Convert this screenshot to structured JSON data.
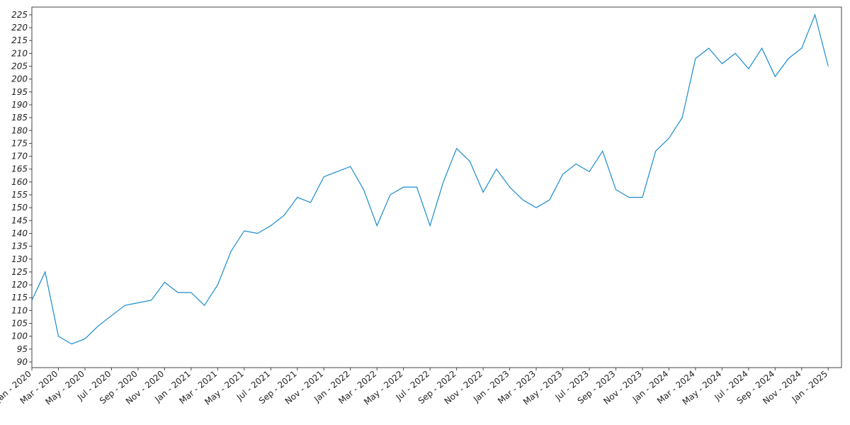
{
  "chart_data": {
    "type": "line",
    "x": [
      "2020-01",
      "2020-02",
      "2020-03",
      "2020-04",
      "2020-05",
      "2020-06",
      "2020-07",
      "2020-08",
      "2020-09",
      "2020-10",
      "2020-11",
      "2020-12",
      "2021-01",
      "2021-02",
      "2021-03",
      "2021-04",
      "2021-05",
      "2021-06",
      "2021-07",
      "2021-08",
      "2021-09",
      "2021-10",
      "2021-11",
      "2021-12",
      "2022-01",
      "2022-02",
      "2022-03",
      "2022-04",
      "2022-05",
      "2022-06",
      "2022-07",
      "2022-08",
      "2022-09",
      "2022-10",
      "2022-11",
      "2022-12",
      "2023-01",
      "2023-02",
      "2023-03",
      "2023-04",
      "2023-05",
      "2023-06",
      "2023-07",
      "2023-08",
      "2023-09",
      "2023-10",
      "2023-11",
      "2023-12",
      "2024-01",
      "2024-02",
      "2024-03",
      "2024-04",
      "2024-05",
      "2024-06",
      "2024-07",
      "2024-08",
      "2024-09",
      "2024-10",
      "2024-11",
      "2024-12",
      "2025-01"
    ],
    "series": [
      {
        "color": "#1a8ccc",
        "values": [
          114,
          125,
          100,
          97,
          99,
          104,
          108,
          112,
          113,
          114,
          121,
          117,
          117,
          112,
          120,
          133,
          141,
          140,
          143,
          147,
          154,
          152,
          162,
          164,
          166,
          157,
          143,
          155,
          158,
          158,
          143,
          160,
          173,
          168,
          156,
          165,
          158,
          153,
          150,
          153,
          163,
          167,
          164,
          172,
          157,
          154,
          154,
          172,
          177,
          185,
          208,
          212,
          206,
          210,
          204,
          212,
          201,
          208,
          212,
          225,
          205
        ]
      }
    ],
    "xlim": [
      "2020-01",
      "2025-02"
    ],
    "xticks": [
      {
        "value": "2020-01",
        "label": "Jan - 2020"
      },
      {
        "value": "2020-03",
        "label": "Mar - 2020"
      },
      {
        "value": "2020-05",
        "label": "May - 2020"
      },
      {
        "value": "2020-07",
        "label": "Jul - 2020"
      },
      {
        "value": "2020-09",
        "label": "Sep - 2020"
      },
      {
        "value": "2020-11",
        "label": "Nov - 2020"
      },
      {
        "value": "2021-01",
        "label": "Jan - 2021"
      },
      {
        "value": "2021-03",
        "label": "Mar - 2021"
      },
      {
        "value": "2021-05",
        "label": "May - 2021"
      },
      {
        "value": "2021-07",
        "label": "Jul - 2021"
      },
      {
        "value": "2021-09",
        "label": "Sep - 2021"
      },
      {
        "value": "2021-11",
        "label": "Nov - 2021"
      },
      {
        "value": "2022-01",
        "label": "Jan - 2022"
      },
      {
        "value": "2022-03",
        "label": "Mar - 2022"
      },
      {
        "value": "2022-05",
        "label": "May - 2022"
      },
      {
        "value": "2022-07",
        "label": "Jul - 2022"
      },
      {
        "value": "2022-09",
        "label": "Sep - 2022"
      },
      {
        "value": "2022-11",
        "label": "Nov - 2022"
      },
      {
        "value": "2023-01",
        "label": "Jan - 2023"
      },
      {
        "value": "2023-03",
        "label": "Mar - 2023"
      },
      {
        "value": "2023-05",
        "label": "May - 2023"
      },
      {
        "value": "2023-07",
        "label": "Jul - 2023"
      },
      {
        "value": "2023-09",
        "label": "Sep - 2023"
      },
      {
        "value": "2023-11",
        "label": "Nov - 2023"
      },
      {
        "value": "2024-01",
        "label": "Jan - 2024"
      },
      {
        "value": "2024-03",
        "label": "Mar - 2024"
      },
      {
        "value": "2024-05",
        "label": "May - 2024"
      },
      {
        "value": "2024-07",
        "label": "Jul - 2024"
      },
      {
        "value": "2024-09",
        "label": "Sep - 2024"
      },
      {
        "value": "2024-11",
        "label": "Nov - 2024"
      },
      {
        "value": "2025-01",
        "label": "Jan - 2025"
      }
    ],
    "ylim": [
      87.8,
      228
    ],
    "yticks": [
      90,
      95,
      100,
      105,
      110,
      115,
      120,
      125,
      130,
      135,
      140,
      145,
      150,
      155,
      160,
      165,
      170,
      175,
      180,
      185,
      190,
      195,
      200,
      205,
      210,
      215,
      220,
      225
    ]
  }
}
